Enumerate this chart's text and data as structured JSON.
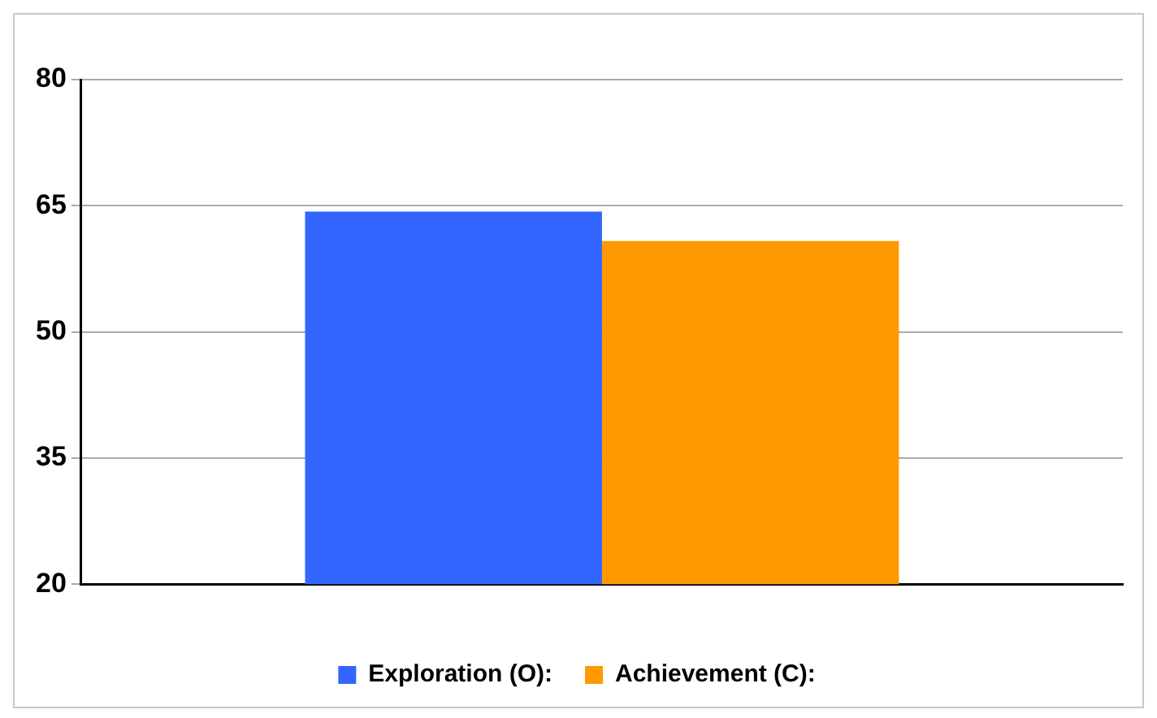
{
  "chart_data": {
    "type": "bar",
    "categories": [
      null
    ],
    "series": [
      {
        "name": "Exploration (O):",
        "color": "#3366ff",
        "values": [
          64.3
        ]
      },
      {
        "name": "Achievement (C):",
        "color": "#ff9900",
        "values": [
          60.8
        ]
      }
    ],
    "ylim": [
      20,
      80
    ],
    "yticks": [
      20,
      35,
      50,
      65,
      80
    ],
    "grid": "y",
    "legend": "bottom"
  }
}
